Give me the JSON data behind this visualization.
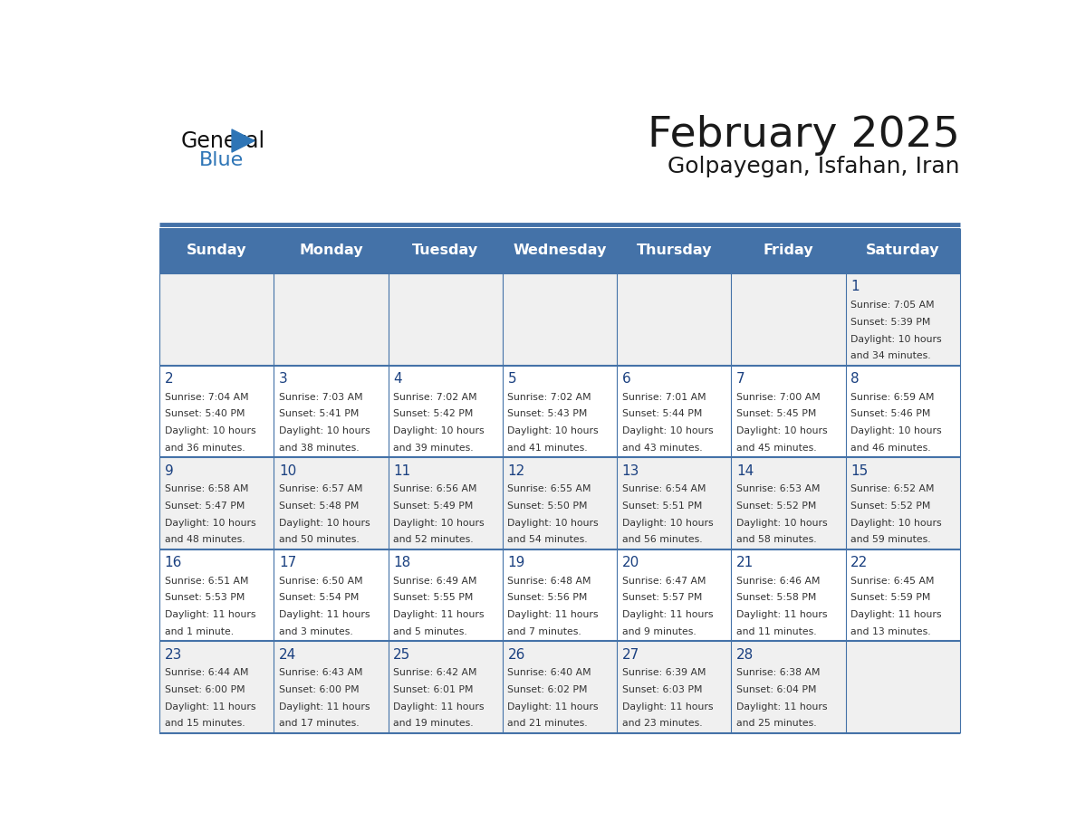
{
  "title": "February 2025",
  "subtitle": "Golpayegan, Isfahan, Iran",
  "days_of_week": [
    "Sunday",
    "Monday",
    "Tuesday",
    "Wednesday",
    "Thursday",
    "Friday",
    "Saturday"
  ],
  "header_bg": "#4472a8",
  "header_text_color": "#ffffff",
  "cell_bg_even": "#f0f0f0",
  "cell_bg_odd": "#ffffff",
  "line_color": "#4472a8",
  "title_color": "#1a1a1a",
  "subtitle_color": "#1a1a1a",
  "day_num_color": "#1a4080",
  "cell_text_color": "#333333",
  "calendar_data": [
    [
      null,
      null,
      null,
      null,
      null,
      null,
      {
        "day": 1,
        "sunrise": "7:05 AM",
        "sunset": "5:39 PM",
        "daylight": "10 hours",
        "daylight2": "and 34 minutes."
      }
    ],
    [
      {
        "day": 2,
        "sunrise": "7:04 AM",
        "sunset": "5:40 PM",
        "daylight": "10 hours",
        "daylight2": "and 36 minutes."
      },
      {
        "day": 3,
        "sunrise": "7:03 AM",
        "sunset": "5:41 PM",
        "daylight": "10 hours",
        "daylight2": "and 38 minutes."
      },
      {
        "day": 4,
        "sunrise": "7:02 AM",
        "sunset": "5:42 PM",
        "daylight": "10 hours",
        "daylight2": "and 39 minutes."
      },
      {
        "day": 5,
        "sunrise": "7:02 AM",
        "sunset": "5:43 PM",
        "daylight": "10 hours",
        "daylight2": "and 41 minutes."
      },
      {
        "day": 6,
        "sunrise": "7:01 AM",
        "sunset": "5:44 PM",
        "daylight": "10 hours",
        "daylight2": "and 43 minutes."
      },
      {
        "day": 7,
        "sunrise": "7:00 AM",
        "sunset": "5:45 PM",
        "daylight": "10 hours",
        "daylight2": "and 45 minutes."
      },
      {
        "day": 8,
        "sunrise": "6:59 AM",
        "sunset": "5:46 PM",
        "daylight": "10 hours",
        "daylight2": "and 46 minutes."
      }
    ],
    [
      {
        "day": 9,
        "sunrise": "6:58 AM",
        "sunset": "5:47 PM",
        "daylight": "10 hours",
        "daylight2": "and 48 minutes."
      },
      {
        "day": 10,
        "sunrise": "6:57 AM",
        "sunset": "5:48 PM",
        "daylight": "10 hours",
        "daylight2": "and 50 minutes."
      },
      {
        "day": 11,
        "sunrise": "6:56 AM",
        "sunset": "5:49 PM",
        "daylight": "10 hours",
        "daylight2": "and 52 minutes."
      },
      {
        "day": 12,
        "sunrise": "6:55 AM",
        "sunset": "5:50 PM",
        "daylight": "10 hours",
        "daylight2": "and 54 minutes."
      },
      {
        "day": 13,
        "sunrise": "6:54 AM",
        "sunset": "5:51 PM",
        "daylight": "10 hours",
        "daylight2": "and 56 minutes."
      },
      {
        "day": 14,
        "sunrise": "6:53 AM",
        "sunset": "5:52 PM",
        "daylight": "10 hours",
        "daylight2": "and 58 minutes."
      },
      {
        "day": 15,
        "sunrise": "6:52 AM",
        "sunset": "5:52 PM",
        "daylight": "10 hours",
        "daylight2": "and 59 minutes."
      }
    ],
    [
      {
        "day": 16,
        "sunrise": "6:51 AM",
        "sunset": "5:53 PM",
        "daylight": "11 hours",
        "daylight2": "and 1 minute."
      },
      {
        "day": 17,
        "sunrise": "6:50 AM",
        "sunset": "5:54 PM",
        "daylight": "11 hours",
        "daylight2": "and 3 minutes."
      },
      {
        "day": 18,
        "sunrise": "6:49 AM",
        "sunset": "5:55 PM",
        "daylight": "11 hours",
        "daylight2": "and 5 minutes."
      },
      {
        "day": 19,
        "sunrise": "6:48 AM",
        "sunset": "5:56 PM",
        "daylight": "11 hours",
        "daylight2": "and 7 minutes."
      },
      {
        "day": 20,
        "sunrise": "6:47 AM",
        "sunset": "5:57 PM",
        "daylight": "11 hours",
        "daylight2": "and 9 minutes."
      },
      {
        "day": 21,
        "sunrise": "6:46 AM",
        "sunset": "5:58 PM",
        "daylight": "11 hours",
        "daylight2": "and 11 minutes."
      },
      {
        "day": 22,
        "sunrise": "6:45 AM",
        "sunset": "5:59 PM",
        "daylight": "11 hours",
        "daylight2": "and 13 minutes."
      }
    ],
    [
      {
        "day": 23,
        "sunrise": "6:44 AM",
        "sunset": "6:00 PM",
        "daylight": "11 hours",
        "daylight2": "and 15 minutes."
      },
      {
        "day": 24,
        "sunrise": "6:43 AM",
        "sunset": "6:00 PM",
        "daylight": "11 hours",
        "daylight2": "and 17 minutes."
      },
      {
        "day": 25,
        "sunrise": "6:42 AM",
        "sunset": "6:01 PM",
        "daylight": "11 hours",
        "daylight2": "and 19 minutes."
      },
      {
        "day": 26,
        "sunrise": "6:40 AM",
        "sunset": "6:02 PM",
        "daylight": "11 hours",
        "daylight2": "and 21 minutes."
      },
      {
        "day": 27,
        "sunrise": "6:39 AM",
        "sunset": "6:03 PM",
        "daylight": "11 hours",
        "daylight2": "and 23 minutes."
      },
      {
        "day": 28,
        "sunrise": "6:38 AM",
        "sunset": "6:04 PM",
        "daylight": "11 hours",
        "daylight2": "and 25 minutes."
      },
      null
    ]
  ]
}
